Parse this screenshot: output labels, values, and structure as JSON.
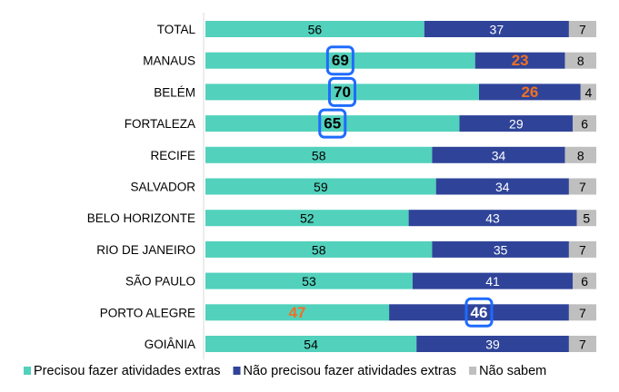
{
  "chart_data": {
    "type": "bar",
    "orientation": "horizontal",
    "stacked": true,
    "xlim": [
      0,
      100
    ],
    "grid": false,
    "legend_placement": "bottom",
    "categories": [
      "TOTAL",
      "MANAUS",
      "BELÉM",
      "FORTALEZA",
      "RECIFE",
      "SALVADOR",
      "BELO HORIZONTE",
      "RIO DE JANEIRO",
      "SÃO PAULO",
      "PORTO ALEGRE",
      "GOIÂNIA"
    ],
    "series": [
      {
        "name": "Precisou fazer atividades extras",
        "color": "#52d1bc",
        "label_color": "#000000",
        "values": [
          56,
          69,
          70,
          65,
          58,
          59,
          52,
          58,
          53,
          47,
          54
        ]
      },
      {
        "name": "Não precisou fazer atividades extras",
        "color": "#2f4499",
        "label_color": "#ffffff",
        "values": [
          37,
          23,
          26,
          29,
          34,
          34,
          43,
          35,
          41,
          46,
          39
        ]
      },
      {
        "name": "Não sabem",
        "color": "#bfbfbf",
        "label_color": "#000000",
        "values": [
          7,
          8,
          4,
          6,
          8,
          7,
          5,
          7,
          6,
          7,
          7
        ]
      }
    ],
    "highlights": [
      {
        "category": "MANAUS",
        "series": 0,
        "style": "box"
      },
      {
        "category": "MANAUS",
        "series": 1,
        "style": "orange"
      },
      {
        "category": "BELÉM",
        "series": 0,
        "style": "box"
      },
      {
        "category": "BELÉM",
        "series": 1,
        "style": "orange"
      },
      {
        "category": "FORTALEZA",
        "series": 0,
        "style": "box"
      },
      {
        "category": "PORTO ALEGRE",
        "series": 0,
        "style": "orange"
      },
      {
        "category": "PORTO ALEGRE",
        "series": 1,
        "style": "box"
      }
    ],
    "highlight_colors": {
      "box": "#1f6bff",
      "orange": "#f07021"
    }
  }
}
